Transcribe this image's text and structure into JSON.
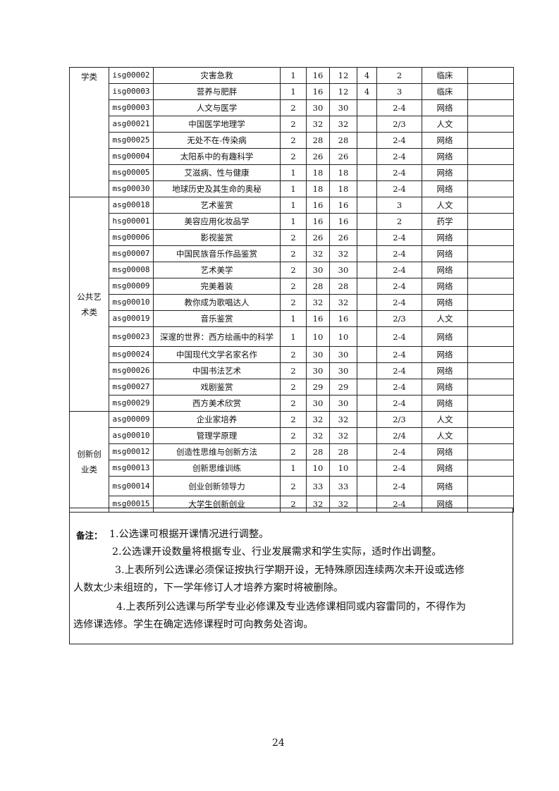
{
  "table": {
    "groups": [
      {
        "category": "学类",
        "align": "top",
        "rows": [
          [
            "isg00002",
            "灾害急救",
            "1",
            "16",
            "12",
            "4",
            "2",
            "临床"
          ],
          [
            "isg00003",
            "营养与肥胖",
            "1",
            "16",
            "12",
            "4",
            "3",
            "临床"
          ],
          [
            "msg00003",
            "人文与医学",
            "2",
            "30",
            "30",
            "",
            "2-4",
            "网络"
          ],
          [
            "asg00021",
            "中国医学地理学",
            "2",
            "32",
            "32",
            "",
            "2/3",
            "人文"
          ],
          [
            "msg00025",
            "无处不在-传染病",
            "2",
            "28",
            "28",
            "",
            "2-4",
            "网络"
          ],
          [
            "msg00004",
            "太阳系中的有趣科学",
            "2",
            "26",
            "26",
            "",
            "2-4",
            "网络"
          ],
          [
            "msg00005",
            "艾滋病、性与健康",
            "1",
            "18",
            "18",
            "",
            "2-4",
            "网络"
          ],
          [
            "msg00030",
            "地球历史及其生命的奥秘",
            "1",
            "18",
            "18",
            "",
            "2-4",
            "网络"
          ]
        ]
      },
      {
        "category": "公共艺术类",
        "align": "middle",
        "rows": [
          [
            "asg00018",
            "艺术鉴赏",
            "1",
            "16",
            "16",
            "",
            "3",
            "人文"
          ],
          [
            "hsg00001",
            "美容应用化妆品学",
            "1",
            "16",
            "16",
            "",
            "2",
            "药学"
          ],
          [
            "msg00006",
            "影视鉴赏",
            "2",
            "26",
            "26",
            "",
            "2-4",
            "网络"
          ],
          [
            "msg00007",
            "中国民族音乐作品鉴赏",
            "2",
            "32",
            "32",
            "",
            "2-4",
            "网络"
          ],
          [
            "msg00008",
            "艺术美学",
            "2",
            "30",
            "30",
            "",
            "2-4",
            "网络"
          ],
          [
            "msg00009",
            "完美着装",
            "2",
            "28",
            "28",
            "",
            "2-4",
            "网络"
          ],
          [
            "msg00010",
            "教你成为歌唱达人",
            "2",
            "32",
            "32",
            "",
            "2-4",
            "网络"
          ],
          [
            "asg00019",
            "音乐鉴赏",
            "1",
            "16",
            "16",
            "",
            "2/3",
            "人文"
          ],
          [
            "msg00023",
            "深邃的世界：西方绘画中的科学",
            "1",
            "10",
            "10",
            "",
            "2-4",
            "网络"
          ],
          [
            "msg00024",
            "中国现代文学名家名作",
            "2",
            "30",
            "30",
            "",
            "2-4",
            "网络"
          ],
          [
            "msg00026",
            "中国书法艺术",
            "2",
            "30",
            "30",
            "",
            "2-4",
            "网络"
          ],
          [
            "msg00027",
            "戏剧鉴赏",
            "2",
            "29",
            "29",
            "",
            "2-4",
            "网络"
          ],
          [
            "msg00029",
            "西方美术欣赏",
            "2",
            "30",
            "30",
            "",
            "2-4",
            "网络"
          ]
        ]
      },
      {
        "category": "创新创业类",
        "align": "middle",
        "rows": [
          [
            "asg00009",
            "企业家培养",
            "2",
            "32",
            "32",
            "",
            "2/3",
            "人文"
          ],
          [
            "asg00010",
            "管理学原理",
            "2",
            "32",
            "32",
            "",
            "2/4",
            "人文"
          ],
          [
            "msg00012",
            "创造性思维与创新方法",
            "2",
            "28",
            "28",
            "",
            "2-4",
            "网络"
          ],
          [
            "msg00013",
            "创新思维训练",
            "1",
            "10",
            "10",
            "",
            "2-4",
            "网络"
          ],
          [
            "msg00014",
            "创业创新领导力",
            "2",
            "33",
            "33",
            "",
            "2-4",
            "网络"
          ],
          [
            "msg00015",
            "大学生创新创业",
            "2",
            "32",
            "32",
            "",
            "2-4",
            "网络"
          ]
        ]
      }
    ]
  },
  "notes": {
    "label": "备注：",
    "lines": [
      "1.公选课可根据开课情况进行调整。",
      "2.公选课开设数量将根据专业、行业发展需求和学生实际，适时作出调整。",
      "3.上表所列公选课必须保证按执行学期开设，无特殊原因连续两次未开设或选修",
      "人数太少未组班的，下一学年修订人才培养方案时将被删除。",
      "4.上表所列公选课与所学专业必修课及专业选修课相同或内容雷同的，不得作为",
      "选修课选修。学生在确定选修课程时可向教务处咨询。"
    ]
  },
  "page_number": "24"
}
